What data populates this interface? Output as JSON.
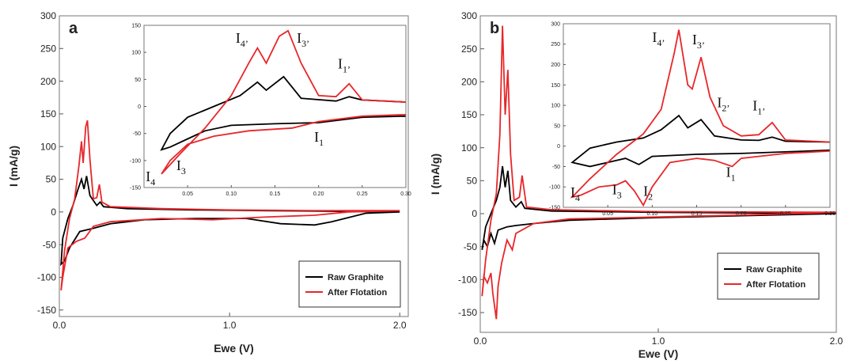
{
  "chart_data": [
    {
      "type": "line",
      "panel_label": "a",
      "xlabel": "Ewe (V)",
      "ylabel": "I (mA/g)",
      "xlim": [
        0,
        2.05
      ],
      "ylim": [
        -160,
        300
      ],
      "xticks": [
        {
          "value": 0,
          "label": "0.0"
        },
        {
          "value": 1,
          "label": "1.0"
        },
        {
          "value": 2,
          "label": "2.0"
        }
      ],
      "yticks": [
        -150,
        -100,
        -50,
        0,
        50,
        100,
        150,
        200,
        250,
        300
      ],
      "legend": "lower right",
      "series": [
        {
          "name": "Raw Graphite",
          "color": "#000000",
          "x": [
            2.0,
            1.8,
            1.6,
            1.5,
            1.3,
            1.1,
            0.8,
            0.5,
            0.3,
            0.2,
            0.12,
            0.06,
            0.03,
            0.01,
            0.02,
            0.05,
            0.08,
            0.11,
            0.13,
            0.145,
            0.16,
            0.18,
            0.22,
            0.24,
            0.26,
            0.4,
            0.8,
            1.2,
            1.6,
            2.0
          ],
          "values": [
            0,
            -2,
            -15,
            -20,
            -18,
            -10,
            -10,
            -12,
            -18,
            -25,
            -30,
            -55,
            -75,
            -80,
            -40,
            -10,
            10,
            35,
            50,
            35,
            55,
            25,
            10,
            15,
            8,
            5,
            3,
            2,
            1,
            0
          ]
        },
        {
          "name": "After Flotation",
          "color": "#e8262a",
          "x": [
            2.0,
            1.7,
            1.5,
            1.2,
            0.9,
            0.6,
            0.3,
            0.2,
            0.15,
            0.1,
            0.05,
            0.02,
            0.01,
            0.03,
            0.06,
            0.09,
            0.115,
            0.13,
            0.14,
            0.155,
            0.165,
            0.18,
            0.2,
            0.22,
            0.235,
            0.25,
            0.3,
            0.6,
            1.0,
            1.5,
            2.0
          ],
          "values": [
            2,
            0,
            -5,
            -8,
            -12,
            -10,
            -15,
            -22,
            -40,
            -45,
            -55,
            -100,
            -120,
            -60,
            -10,
            20,
            70,
            108,
            75,
            130,
            140,
            80,
            20,
            22,
            42,
            15,
            8,
            5,
            3,
            2,
            2
          ]
        }
      ],
      "inset": {
        "xlim": [
          0,
          0.3
        ],
        "ylim": [
          -150,
          150
        ],
        "xticks": [
          {
            "value": 0.05,
            "label": "0.05"
          },
          {
            "value": 0.1,
            "label": "0.10"
          },
          {
            "value": 0.15,
            "label": "0.15"
          },
          {
            "value": 0.2,
            "label": "0.20"
          },
          {
            "value": 0.25,
            "label": "0.25"
          },
          {
            "value": 0.3,
            "label": "0.30"
          }
        ],
        "yticks": [
          -150,
          -100,
          -50,
          0,
          50,
          100,
          150
        ],
        "series": [
          {
            "color": "#000000",
            "x": [
              0.3,
              0.25,
              0.2,
              0.15,
              0.1,
              0.07,
              0.05,
              0.03,
              0.02,
              0.03,
              0.05,
              0.08,
              0.11,
              0.13,
              0.14,
              0.16,
              0.18,
              0.22,
              0.235,
              0.25,
              0.3
            ],
            "values": [
              -18,
              -20,
              -30,
              -32,
              -35,
              -45,
              -60,
              -75,
              -80,
              -50,
              -20,
              0,
              20,
              45,
              30,
              55,
              15,
              10,
              18,
              12,
              8
            ]
          },
          {
            "color": "#e8262a",
            "x": [
              0.3,
              0.25,
              0.2,
              0.17,
              0.12,
              0.08,
              0.05,
              0.03,
              0.02,
              0.04,
              0.07,
              0.1,
              0.12,
              0.13,
              0.14,
              0.155,
              0.165,
              0.18,
              0.2,
              0.22,
              0.235,
              0.25,
              0.3
            ],
            "values": [
              -15,
              -18,
              -28,
              -40,
              -45,
              -55,
              -70,
              -100,
              -125,
              -90,
              -40,
              20,
              80,
              108,
              80,
              130,
              140,
              80,
              20,
              18,
              42,
              12,
              8
            ]
          }
        ],
        "annotations": [
          {
            "text": "I",
            "sub": "4’"
          },
          {
            "text": "I",
            "sub": "3’"
          },
          {
            "text": "I",
            "sub": "1’"
          },
          {
            "text": "I",
            "sub": "1"
          },
          {
            "text": "I",
            "sub": "4"
          },
          {
            "text": "I",
            "sub": "3"
          }
        ]
      }
    },
    {
      "type": "line",
      "panel_label": "b",
      "xlabel": "Ewe (V)",
      "ylabel": "I (mA/g)",
      "xlim": [
        0,
        2.0
      ],
      "ylim": [
        -180,
        300
      ],
      "xticks": [
        {
          "value": 0,
          "label": "0.0"
        },
        {
          "value": 1,
          "label": "1.0"
        },
        {
          "value": 2,
          "label": "2.0"
        }
      ],
      "yticks": [
        -150,
        -100,
        -50,
        0,
        50,
        100,
        150,
        200,
        250,
        300
      ],
      "legend": "lower right",
      "series": [
        {
          "name": "Raw Graphite",
          "color": "#000000",
          "x": [
            2.0,
            1.5,
            1.0,
            0.5,
            0.3,
            0.2,
            0.15,
            0.1,
            0.08,
            0.06,
            0.04,
            0.02,
            0.01,
            0.03,
            0.06,
            0.09,
            0.11,
            0.125,
            0.14,
            0.155,
            0.17,
            0.2,
            0.23,
            0.25,
            0.4,
            1.0,
            2.0
          ],
          "values": [
            0,
            -3,
            -6,
            -10,
            -15,
            -18,
            -20,
            -25,
            -45,
            -30,
            -50,
            -40,
            -55,
            -20,
            0,
            20,
            40,
            72,
            40,
            65,
            20,
            10,
            18,
            8,
            4,
            2,
            0
          ]
        },
        {
          "name": "After Flotation",
          "color": "#e8262a",
          "x": [
            2.0,
            1.5,
            1.0,
            0.5,
            0.3,
            0.2,
            0.18,
            0.15,
            0.12,
            0.1,
            0.09,
            0.07,
            0.06,
            0.04,
            0.02,
            0.01,
            0.03,
            0.06,
            0.09,
            0.11,
            0.125,
            0.14,
            0.155,
            0.17,
            0.19,
            0.22,
            0.235,
            0.26,
            0.4,
            1.0,
            2.0
          ],
          "values": [
            2,
            -2,
            -5,
            -8,
            -15,
            -30,
            -55,
            -40,
            -75,
            -110,
            -160,
            -120,
            -90,
            -105,
            -95,
            -125,
            -70,
            -10,
            30,
            120,
            285,
            150,
            218,
            90,
            20,
            25,
            58,
            10,
            6,
            3,
            2
          ]
        }
      ],
      "inset": {
        "xlim": [
          0,
          0.3
        ],
        "ylim": [
          -150,
          300
        ],
        "xticks": [
          {
            "value": 0.05,
            "label": "0.05"
          },
          {
            "value": 0.1,
            "label": "0.10"
          },
          {
            "value": 0.15,
            "label": "0.15"
          },
          {
            "value": 0.2,
            "label": "0.20"
          },
          {
            "value": 0.25,
            "label": "0.25"
          },
          {
            "value": 0.3,
            "label": "0.30"
          }
        ],
        "yticks": [
          -150,
          -100,
          -50,
          0,
          50,
          100,
          150,
          200,
          250,
          300
        ],
        "series": [
          {
            "color": "#000000",
            "x": [
              0.3,
              0.25,
              0.2,
              0.15,
              0.1,
              0.085,
              0.07,
              0.05,
              0.03,
              0.01,
              0.03,
              0.06,
              0.09,
              0.11,
              0.13,
              0.14,
              0.155,
              0.17,
              0.2,
              0.22,
              0.235,
              0.25,
              0.3
            ],
            "values": [
              -10,
              -14,
              -18,
              -20,
              -25,
              -45,
              -30,
              -40,
              -50,
              -40,
              -5,
              10,
              20,
              40,
              75,
              45,
              65,
              25,
              15,
              14,
              22,
              12,
              10
            ]
          },
          {
            "color": "#e8262a",
            "x": [
              0.3,
              0.25,
              0.2,
              0.19,
              0.17,
              0.15,
              0.12,
              0.1,
              0.09,
              0.08,
              0.07,
              0.06,
              0.04,
              0.02,
              0.01,
              0.03,
              0.06,
              0.09,
              0.11,
              0.125,
              0.13,
              0.14,
              0.145,
              0.155,
              0.165,
              0.18,
              0.2,
              0.22,
              0.235,
              0.25,
              0.3
            ],
            "values": [
              -12,
              -18,
              -30,
              -50,
              -35,
              -30,
              -40,
              -100,
              -145,
              -110,
              -85,
              -95,
              -100,
              -120,
              -125,
              -80,
              -20,
              30,
              90,
              230,
              285,
              150,
              140,
              218,
              120,
              50,
              25,
              28,
              58,
              15,
              10
            ]
          }
        ],
        "annotations": [
          {
            "text": "I",
            "sub": "4’"
          },
          {
            "text": "I",
            "sub": "3’"
          },
          {
            "text": "I",
            "sub": "2’"
          },
          {
            "text": "I",
            "sub": "1’"
          },
          {
            "text": "I",
            "sub": "1"
          },
          {
            "text": "I",
            "sub": "4"
          },
          {
            "text": "I",
            "sub": "3"
          },
          {
            "text": "I",
            "sub": "2"
          }
        ]
      }
    }
  ]
}
